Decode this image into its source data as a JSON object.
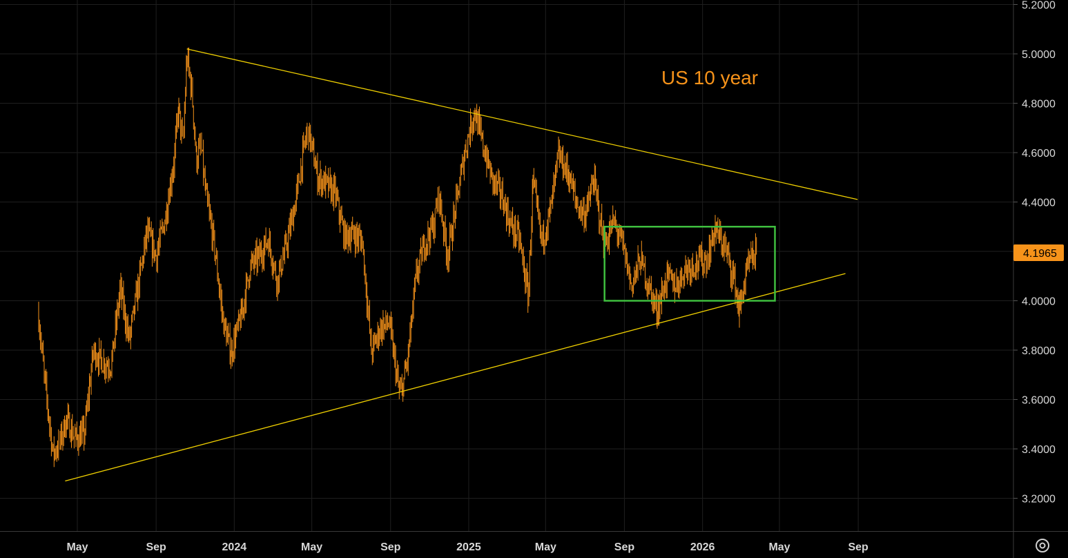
{
  "chart_data": {
    "type": "ohlc",
    "annotation": "US 10 year",
    "y_axis": {
      "ticks": [
        "5.2000",
        "5.0000",
        "4.8000",
        "4.6000",
        "4.4000",
        "4.2000",
        "4.0000",
        "3.8000",
        "3.6000",
        "3.4000",
        "3.2000"
      ],
      "range": [
        3.1,
        5.2
      ]
    },
    "x_axis": {
      "ticks": [
        {
          "label": "May",
          "date": "2023-05-01",
          "bold": false
        },
        {
          "label": "Sep",
          "date": "2023-09-01",
          "bold": false
        },
        {
          "label": "2024",
          "date": "2024-01-01",
          "bold": true
        },
        {
          "label": "May",
          "date": "2024-05-01",
          "bold": false
        },
        {
          "label": "Sep",
          "date": "2024-09-01",
          "bold": false
        },
        {
          "label": "2025",
          "date": "2025-01-01",
          "bold": true
        },
        {
          "label": "May",
          "date": "2025-05-01",
          "bold": false
        },
        {
          "label": "Sep",
          "date": "2025-09-01",
          "bold": false
        },
        {
          "label": "2026",
          "date": "2026-01-01",
          "bold": true
        },
        {
          "label": "May",
          "date": "2026-05-01",
          "bold": false
        },
        {
          "label": "Sep",
          "date": "2026-09-01",
          "bold": false
        }
      ]
    },
    "last_value": "4.1965",
    "series": [
      {
        "color": "#f7931a",
        "points": [
          [
            "2023-03-01",
            3.95
          ],
          [
            "2023-03-10",
            3.7
          ],
          [
            "2023-03-24",
            3.38
          ],
          [
            "2023-04-03",
            3.42
          ],
          [
            "2023-04-14",
            3.52
          ],
          [
            "2023-04-28",
            3.44
          ],
          [
            "2023-05-12",
            3.46
          ],
          [
            "2023-05-26",
            3.8
          ],
          [
            "2023-06-09",
            3.75
          ],
          [
            "2023-06-23",
            3.74
          ],
          [
            "2023-07-07",
            4.05
          ],
          [
            "2023-07-21",
            3.84
          ],
          [
            "2023-08-04",
            4.06
          ],
          [
            "2023-08-18",
            4.28
          ],
          [
            "2023-09-01",
            4.18
          ],
          [
            "2023-09-15",
            4.33
          ],
          [
            "2023-09-29",
            4.57
          ],
          [
            "2023-10-06",
            4.78
          ],
          [
            "2023-10-13",
            4.62
          ],
          [
            "2023-10-19",
            4.99
          ],
          [
            "2023-10-27",
            4.84
          ],
          [
            "2023-11-03",
            4.57
          ],
          [
            "2023-11-10",
            4.63
          ],
          [
            "2023-11-17",
            4.44
          ],
          [
            "2023-12-01",
            4.22
          ],
          [
            "2023-12-15",
            3.91
          ],
          [
            "2023-12-27",
            3.79
          ],
          [
            "2024-01-12",
            3.94
          ],
          [
            "2024-01-26",
            4.14
          ],
          [
            "2024-02-09",
            4.18
          ],
          [
            "2024-02-23",
            4.25
          ],
          [
            "2024-03-08",
            4.08
          ],
          [
            "2024-03-22",
            4.22
          ],
          [
            "2024-04-05",
            4.39
          ],
          [
            "2024-04-19",
            4.62
          ],
          [
            "2024-04-25",
            4.7
          ],
          [
            "2024-05-10",
            4.5
          ],
          [
            "2024-05-24",
            4.47
          ],
          [
            "2024-06-07",
            4.43
          ],
          [
            "2024-06-21",
            4.26
          ],
          [
            "2024-07-05",
            4.27
          ],
          [
            "2024-07-19",
            4.24
          ],
          [
            "2024-08-02",
            3.79
          ],
          [
            "2024-08-16",
            3.89
          ],
          [
            "2024-08-30",
            3.91
          ],
          [
            "2024-09-13",
            3.65
          ],
          [
            "2024-09-17",
            3.62
          ],
          [
            "2024-09-27",
            3.75
          ],
          [
            "2024-10-11",
            4.1
          ],
          [
            "2024-10-25",
            4.24
          ],
          [
            "2024-11-08",
            4.31
          ],
          [
            "2024-11-15",
            4.44
          ],
          [
            "2024-11-29",
            4.18
          ],
          [
            "2024-12-13",
            4.4
          ],
          [
            "2024-12-27",
            4.62
          ],
          [
            "2025-01-10",
            4.77
          ],
          [
            "2025-01-24",
            4.62
          ],
          [
            "2025-02-07",
            4.49
          ],
          [
            "2025-02-21",
            4.43
          ],
          [
            "2025-03-07",
            4.31
          ],
          [
            "2025-03-21",
            4.25
          ],
          [
            "2025-04-04",
            4.01
          ],
          [
            "2025-04-11",
            4.48
          ],
          [
            "2025-04-25",
            4.24
          ],
          [
            "2025-05-09",
            4.37
          ],
          [
            "2025-05-21",
            4.59
          ],
          [
            "2025-06-06",
            4.51
          ],
          [
            "2025-06-20",
            4.38
          ],
          [
            "2025-07-03",
            4.35
          ],
          [
            "2025-07-15",
            4.49
          ],
          [
            "2025-08-01",
            4.22
          ],
          [
            "2025-08-15",
            4.32
          ],
          [
            "2025-08-29",
            4.23
          ],
          [
            "2025-09-12",
            4.06
          ],
          [
            "2025-09-26",
            4.17
          ],
          [
            "2025-10-10",
            4.05
          ],
          [
            "2025-10-22",
            3.96
          ],
          [
            "2025-11-07",
            4.1
          ],
          [
            "2025-11-21",
            4.06
          ],
          [
            "2025-12-05",
            4.13
          ],
          [
            "2025-12-19",
            4.15
          ],
          [
            "2026-01-09",
            4.17
          ],
          [
            "2026-01-20",
            4.29
          ],
          [
            "2026-02-06",
            4.21
          ],
          [
            "2026-02-20",
            4.08
          ],
          [
            "2026-02-27",
            3.96
          ],
          [
            "2026-03-13",
            4.14
          ],
          [
            "2026-03-27",
            4.1965
          ]
        ]
      }
    ],
    "trendlines": [
      {
        "from": [
          "2023-10-19",
          5.02
        ],
        "to": [
          "2026-08-31",
          4.41
        ],
        "color": "#f0d000"
      },
      {
        "from": [
          "2023-04-12",
          3.27
        ],
        "to": [
          "2026-08-12",
          4.11
        ],
        "color": "#f0d000"
      }
    ],
    "range_box": {
      "from_date": "2025-08-01",
      "to_date": "2026-04-24",
      "top": 4.3,
      "bottom": 4.0,
      "color": "#3fbf3f"
    },
    "grid": true
  },
  "icons": {
    "settings": "gear-icon"
  }
}
